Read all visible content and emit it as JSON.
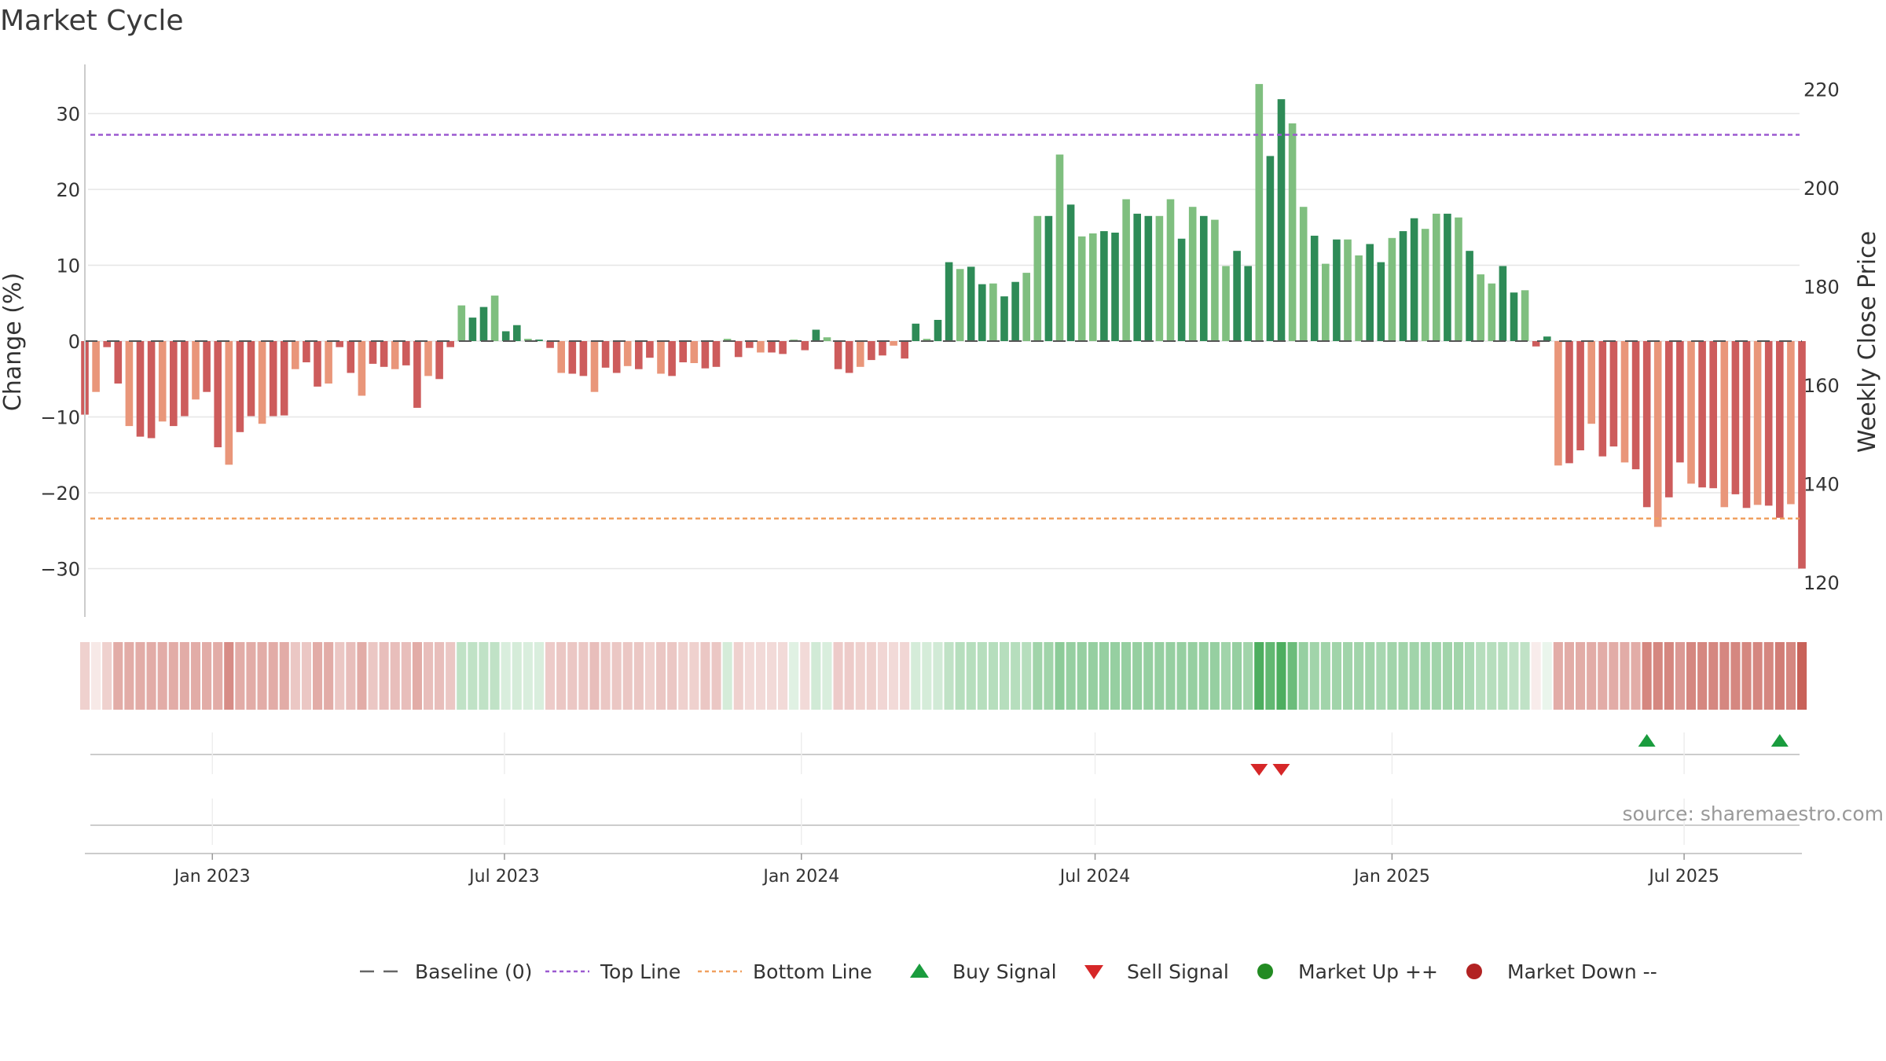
{
  "title": "Market Cycle",
  "source": "source: sharemaestro.com",
  "colors": {
    "bar_pos_strong": "#2e8b57",
    "bar_pos_light": "#7fbf7f",
    "bar_neg_strong": "#cd5c5c",
    "bar_neg_light": "#e9967a",
    "top_line": "#9b59d0",
    "bottom_line": "#f0a060",
    "buy": "#1a9c3e",
    "sell": "#d62728",
    "market_up": "#228b22",
    "market_down": "#b22222",
    "grid": "#e6e6e6"
  },
  "legend": [
    {
      "key": "baseline",
      "label": "Baseline (0)"
    },
    {
      "key": "top",
      "label": "Top Line"
    },
    {
      "key": "bottom",
      "label": "Bottom Line"
    },
    {
      "key": "buy",
      "label": "Buy Signal"
    },
    {
      "key": "sell",
      "label": "Sell Signal"
    },
    {
      "key": "up",
      "label": "Market Up ++"
    },
    {
      "key": "down",
      "label": "Market Down --"
    }
  ],
  "chart_data": {
    "type": "bar",
    "title": "Market Cycle",
    "ylabel": "Change (%)",
    "y2label": "Weekly Close Price",
    "ylim": [
      -36,
      37
    ],
    "y2lim": [
      113,
      225
    ],
    "yticks": [
      -30,
      -20,
      -10,
      0,
      10,
      20,
      30
    ],
    "y2ticks": [
      120,
      140,
      160,
      180,
      200,
      220
    ],
    "x_start": "2022-10-14",
    "x_end": "2025-09-12",
    "xticks": [
      {
        "date": "2023-01-01",
        "label": "Jan 2023"
      },
      {
        "date": "2023-07-01",
        "label": "Jul 2023"
      },
      {
        "date": "2024-01-01",
        "label": "Jan 2024"
      },
      {
        "date": "2024-07-01",
        "label": "Jul 2024"
      },
      {
        "date": "2025-01-01",
        "label": "Jan 2025"
      },
      {
        "date": "2025-07-01",
        "label": "Jul 2025"
      }
    ],
    "top_line": 27.2,
    "bottom_line": -23.4,
    "baseline": 0,
    "grid": true,
    "legend_position": "bottom",
    "values": [
      -9.7,
      -6.7,
      -0.8,
      -5.6,
      -11.2,
      -12.6,
      -12.8,
      -10.6,
      -11.2,
      -9.9,
      -7.7,
      -6.7,
      -14.0,
      -16.3,
      -12.0,
      -9.9,
      -10.9,
      -9.9,
      -9.8,
      -3.7,
      -2.8,
      -6.0,
      -5.6,
      -0.8,
      -4.2,
      -7.2,
      -3.0,
      -3.4,
      -3.7,
      -3.2,
      -8.8,
      -4.6,
      -5.0,
      -0.8,
      4.7,
      3.1,
      4.5,
      6.0,
      1.3,
      2.1,
      0.3,
      0.2,
      -0.9,
      -4.2,
      -4.3,
      -4.6,
      -6.7,
      -3.5,
      -4.2,
      -3.3,
      -3.7,
      -2.2,
      -4.3,
      -4.6,
      -2.8,
      -2.9,
      -3.6,
      -3.4,
      0.3,
      -2.1,
      -0.9,
      -1.5,
      -1.5,
      -1.7,
      0.2,
      -1.2,
      1.5,
      0.5,
      -3.7,
      -4.2,
      -3.4,
      -2.5,
      -1.9,
      -0.6,
      -2.3,
      2.3,
      0.3,
      2.8,
      10.4,
      9.5,
      9.8,
      7.5,
      7.6,
      5.9,
      7.8,
      9.0,
      16.5,
      16.5,
      24.6,
      18.0,
      13.8,
      14.2,
      14.5,
      14.3,
      18.7,
      16.8,
      16.5,
      16.5,
      18.7,
      13.5,
      17.7,
      16.5,
      16.0,
      9.9,
      11.9,
      9.9,
      33.9,
      24.4,
      31.9,
      28.7,
      17.7,
      13.9,
      10.2,
      13.4,
      13.4,
      11.3,
      12.8,
      10.4,
      13.6,
      14.5,
      16.2,
      14.8,
      16.8,
      16.8,
      16.3,
      11.9,
      8.8,
      7.6,
      9.9,
      6.4,
      6.7,
      -0.7,
      0.6,
      -16.4,
      -16.1,
      -14.4,
      -10.9,
      -15.2,
      -13.9,
      -16.0,
      -16.9,
      -21.9,
      -24.5,
      -20.6,
      -16.0,
      -18.8,
      -19.3,
      -19.4,
      -21.9,
      -20.2,
      -22.0,
      -21.6,
      -21.7,
      -23.3,
      -21.5,
      -30.0
    ],
    "heat_strip": [
      0.25,
      0.12,
      0.25,
      0.45,
      0.45,
      0.45,
      0.45,
      0.45,
      0.45,
      0.45,
      0.45,
      0.45,
      0.45,
      0.62,
      0.45,
      0.45,
      0.45,
      0.45,
      0.45,
      0.3,
      0.3,
      0.45,
      0.45,
      0.3,
      0.35,
      0.45,
      0.3,
      0.35,
      0.35,
      0.35,
      0.45,
      0.35,
      0.35,
      0.3,
      0.3,
      0.3,
      0.3,
      0.3,
      0.18,
      0.2,
      0.18,
      0.18,
      0.28,
      0.3,
      0.3,
      0.3,
      0.35,
      0.3,
      0.3,
      0.3,
      0.3,
      0.25,
      0.3,
      0.3,
      0.25,
      0.25,
      0.3,
      0.3,
      0.2,
      0.25,
      0.2,
      0.2,
      0.2,
      0.2,
      0.15,
      0.2,
      0.22,
      0.18,
      0.28,
      0.28,
      0.25,
      0.25,
      0.22,
      0.2,
      0.22,
      0.2,
      0.2,
      0.22,
      0.3,
      0.35,
      0.35,
      0.35,
      0.35,
      0.35,
      0.35,
      0.35,
      0.45,
      0.45,
      0.55,
      0.5,
      0.5,
      0.5,
      0.5,
      0.5,
      0.5,
      0.5,
      0.5,
      0.5,
      0.5,
      0.5,
      0.5,
      0.5,
      0.5,
      0.45,
      0.5,
      0.45,
      0.85,
      0.75,
      0.85,
      0.7,
      0.5,
      0.45,
      0.45,
      0.45,
      0.45,
      0.45,
      0.45,
      0.42,
      0.45,
      0.45,
      0.45,
      0.45,
      0.45,
      0.45,
      0.45,
      0.4,
      0.35,
      0.35,
      0.35,
      0.3,
      0.3,
      0.1,
      0.1,
      0.45,
      0.45,
      0.45,
      0.45,
      0.45,
      0.45,
      0.45,
      0.45,
      0.65,
      0.65,
      0.65,
      0.55,
      0.65,
      0.65,
      0.65,
      0.65,
      0.65,
      0.65,
      0.65,
      0.65,
      0.7,
      0.65,
      0.85
    ],
    "buy_signals": [
      141,
      153
    ],
    "sell_signals": [
      106,
      108
    ]
  }
}
